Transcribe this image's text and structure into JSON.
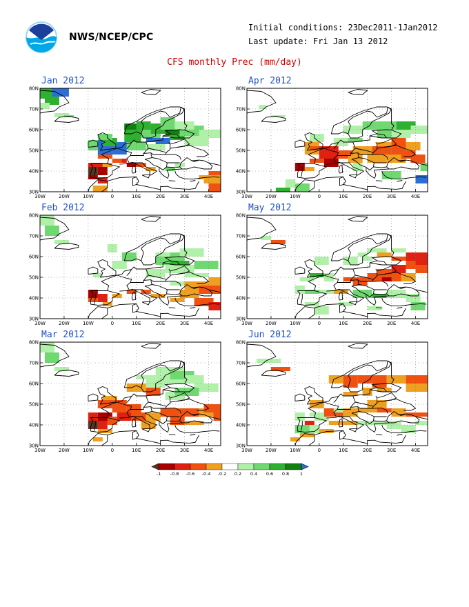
{
  "header": {
    "agency": "NWS/NCEP/CPC",
    "initial_conditions": "Initial conditions: 23Dec2011-1Jan2012",
    "last_update": "Last update: Fri Jan 13 2012",
    "title": "CFS monthly Prec (mm/day)"
  },
  "logo": {
    "icon": "noaa-logo"
  },
  "axes": {
    "lon_labels": [
      "30W",
      "20W",
      "10W",
      "0",
      "10E",
      "20E",
      "30E",
      "40E"
    ],
    "lat_labels": [
      "80N",
      "70N",
      "60N",
      "50N",
      "40N",
      "30N"
    ]
  },
  "panels": [
    {
      "id": "jan",
      "title": "Jan 2012"
    },
    {
      "id": "apr",
      "title": "Apr 2012"
    },
    {
      "id": "feb",
      "title": "Feb 2012"
    },
    {
      "id": "may",
      "title": "May 2012"
    },
    {
      "id": "mar",
      "title": "Mar 2012"
    },
    {
      "id": "jun",
      "title": "Jun 2012"
    }
  ],
  "colorbar": {
    "labels": [
      "-1",
      "-0.8",
      "-0.6",
      "-0.4",
      "-0.2",
      "0.2",
      "0.4",
      "0.6",
      "0.8",
      "1"
    ],
    "colors": [
      "#5a3220",
      "#a80000",
      "#e02010",
      "#f05010",
      "#f0a020",
      "#ffffff",
      "#b0f0a8",
      "#70d870",
      "#30b030",
      "#108010",
      "#2a6fd8"
    ]
  }
}
